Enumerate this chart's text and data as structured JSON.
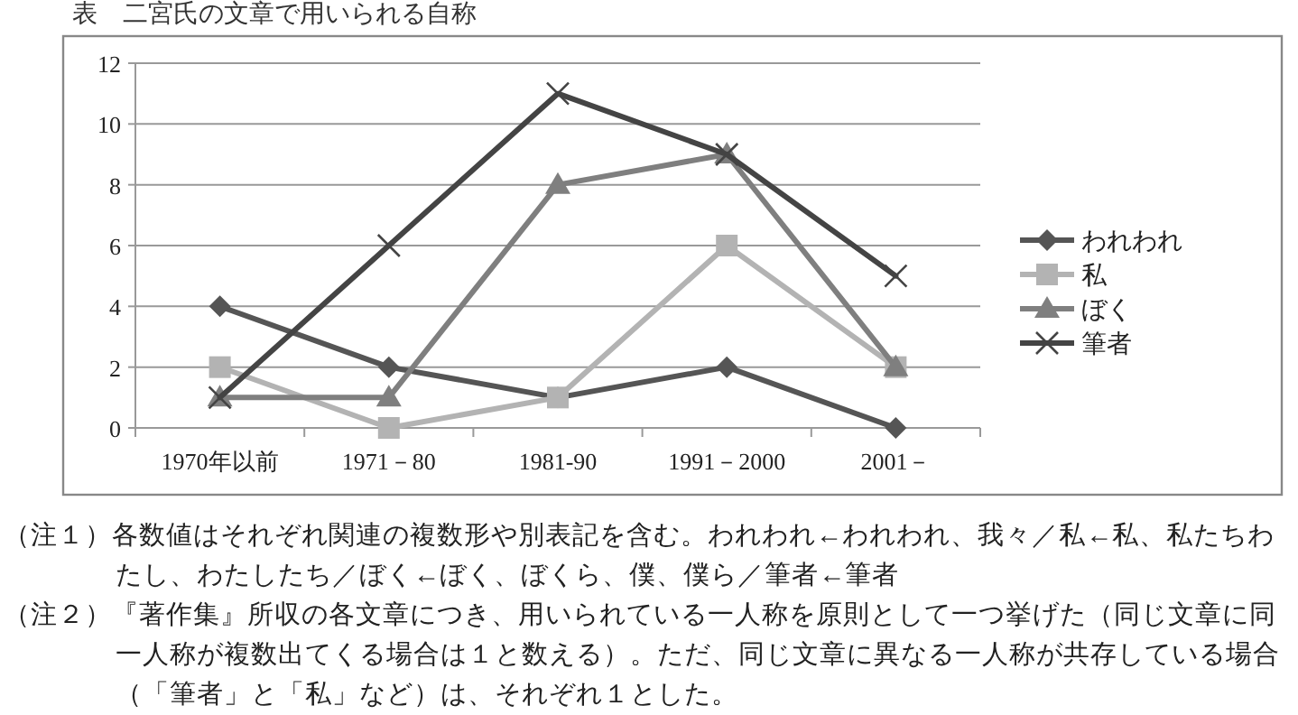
{
  "chart_data": {
    "type": "line",
    "title": "表　二宮氏の文章で用いられる自称",
    "categories": [
      "1970年以前",
      "1971－80",
      "1981-90",
      "1991－2000",
      "2001－"
    ],
    "series": [
      {
        "name": "われわれ",
        "color": "#555555",
        "marker": "diamond",
        "values": [
          4,
          2,
          1,
          2,
          0
        ]
      },
      {
        "name": "私",
        "color": "#b3b3b3",
        "marker": "square",
        "values": [
          2,
          0,
          1,
          6,
          2
        ]
      },
      {
        "name": "ぼく",
        "color": "#7f7f7f",
        "marker": "triangle",
        "values": [
          1,
          1,
          8,
          9,
          2
        ]
      },
      {
        "name": "筆者",
        "color": "#444444",
        "marker": "cross",
        "values": [
          1,
          6,
          11,
          9,
          5
        ]
      }
    ],
    "ylim": [
      0,
      12
    ],
    "yticks": [
      0,
      2,
      4,
      6,
      8,
      10,
      12
    ],
    "grid": "y",
    "legend": "right",
    "annotations": [
      "（注１）各数値はそれぞれ関連の複数形や別表記を含む。われわれ←われわれ、我々／私←私、私たちわたし、わたしたち／ぼく←ぼく、ぼくら、僕、僕ら／筆者←筆者",
      "（注２）『著作集』所収の各文章につき、用いられている一人称を原則として一つ挙げた（同じ文章に同一人称が複数出てくる場合は１と数える）。ただ、同じ文章に異なる一人称が共存している場合（「筆者」と「私」など）は、それぞれ１とした。"
    ]
  }
}
